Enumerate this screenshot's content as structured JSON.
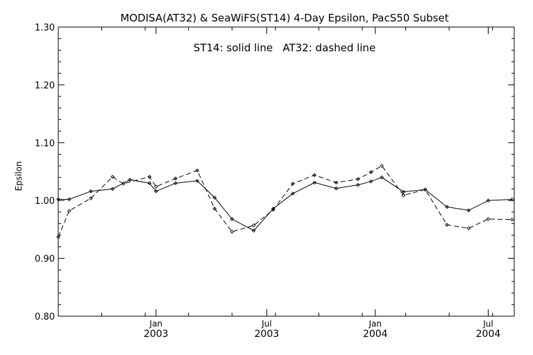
{
  "chart_data": {
    "type": "line",
    "title": "MODISA(AT32) & SeaWiFS(ST14) 4-Day Epsilon, PacS50 Subset",
    "annotation": "ST14: solid line   AT32: dashed line",
    "xlabel": "",
    "ylabel": "Epsilon",
    "xlim": [
      0,
      21
    ],
    "ylim": [
      0.8,
      1.3
    ],
    "y_ticks": [
      {
        "value": 0.8,
        "label": "0.80"
      },
      {
        "value": 0.9,
        "label": "0.90"
      },
      {
        "value": 1.0,
        "label": "1.00"
      },
      {
        "value": 1.1,
        "label": "1.10"
      },
      {
        "value": 1.2,
        "label": "1.20"
      },
      {
        "value": 1.3,
        "label": "1.30"
      }
    ],
    "x_ticks": [
      {
        "x": 4.5,
        "month": "Jan",
        "year": "2003"
      },
      {
        "x": 9.6,
        "month": "Jul",
        "year": "2003"
      },
      {
        "x": 14.6,
        "month": "Jan",
        "year": "2004"
      },
      {
        "x": 19.8,
        "month": "Jul",
        "year": "2004"
      }
    ],
    "x_minor_ticks": [
      2,
      4,
      6,
      8,
      10,
      12,
      14,
      16,
      18,
      20
    ],
    "grid": false,
    "series": [
      {
        "name": "ST14",
        "style": "solid",
        "color": "#000000",
        "x": [
          0,
          0.5,
          1.5,
          2.5,
          3.3,
          4.2,
          4.5,
          5.4,
          6.4,
          7.2,
          8.0,
          9.0,
          9.9,
          10.8,
          11.8,
          12.8,
          13.8,
          14.4,
          14.9,
          15.9,
          16.9,
          17.9,
          18.9,
          19.8,
          20.9
        ],
        "y": [
          1.002,
          1.002,
          1.016,
          1.02,
          1.036,
          1.03,
          1.016,
          1.03,
          1.034,
          1.005,
          0.968,
          0.948,
          0.986,
          1.012,
          1.031,
          1.021,
          1.027,
          1.033,
          1.04,
          1.015,
          1.019,
          0.989,
          0.983,
          1.0,
          1.002
        ]
      },
      {
        "name": "AT32",
        "style": "dashed",
        "color": "#000000",
        "x": [
          0,
          0.5,
          1.5,
          2.5,
          3.0,
          4.2,
          4.5,
          5.4,
          6.4,
          7.2,
          8.0,
          9.0,
          9.9,
          10.8,
          11.8,
          12.8,
          13.8,
          14.4,
          14.9,
          15.9,
          16.9,
          17.9,
          18.9,
          19.8,
          20.9
        ],
        "y": [
          0.937,
          0.982,
          1.004,
          1.041,
          1.029,
          1.041,
          1.024,
          1.038,
          1.052,
          0.986,
          0.946,
          0.957,
          0.984,
          1.029,
          1.044,
          1.031,
          1.037,
          1.049,
          1.06,
          1.009,
          1.019,
          0.958,
          0.952,
          0.968,
          0.967
        ]
      }
    ]
  }
}
